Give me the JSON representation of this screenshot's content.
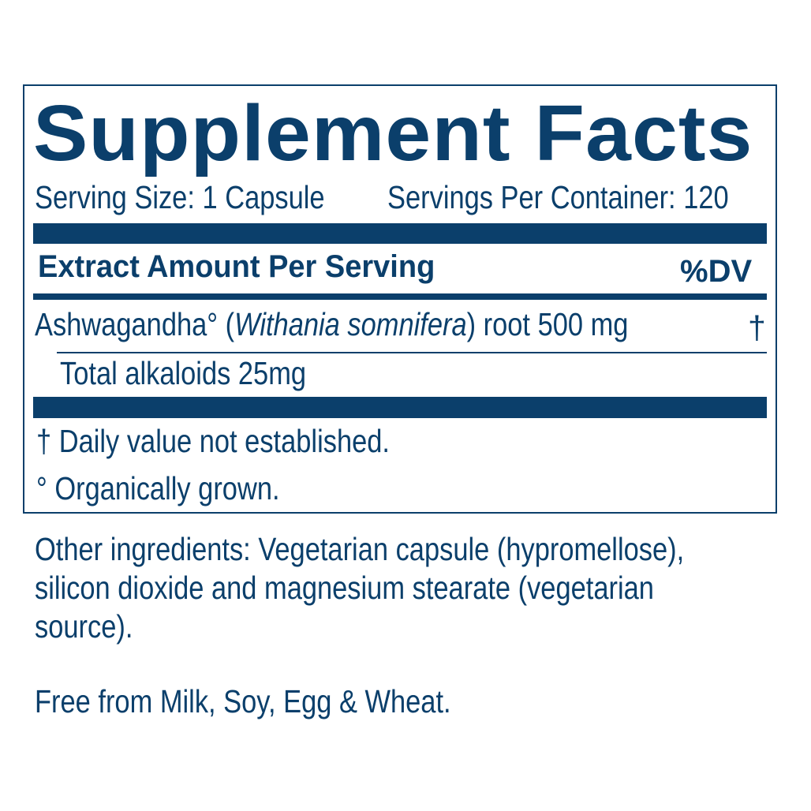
{
  "title": "Supplement Facts",
  "serving_size": "Serving Size: 1 Capsule",
  "servings_per_container": "Servings Per Container: 120",
  "header": {
    "left": "Extract Amount Per Serving",
    "right": "%DV"
  },
  "ingredient": {
    "name": "Ashwagandha°",
    "latin_open": "(",
    "latin": "Withania somnifera",
    "latin_close": ")",
    "detail": "root 500 mg",
    "dv": "†"
  },
  "sub_ingredient": "Total alkaloids 25mg",
  "footnotes": [
    "† Daily value not established.",
    "° Organically grown."
  ],
  "other_ingredients": [
    "Other ingredients: Vegetarian capsule (hypromellose),",
    "silicon dioxide and magnesium stearate (vegetarian",
    "source)."
  ],
  "allergen_statement": "Free from Milk, Soy, Egg & Wheat.",
  "colors": {
    "primary": "#0b3f6b"
  }
}
